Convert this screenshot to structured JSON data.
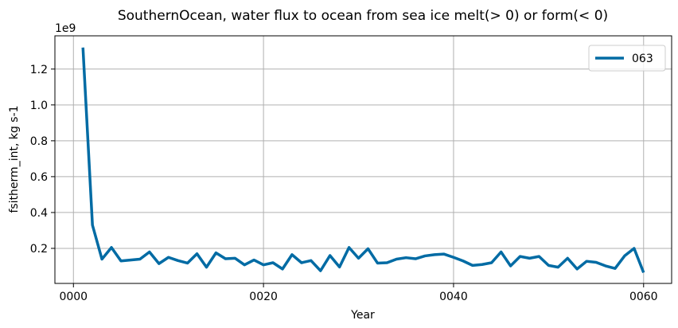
{
  "chart_data": {
    "type": "line",
    "title": "SouthernOcean, water flux to ocean from sea ice melt(> 0) or form(< 0)",
    "xlabel": "Year",
    "ylabel": "fsitherm_int, kg s-1",
    "y_offset_label": "1e9",
    "xlim": [
      -1.95,
      62.95
    ],
    "ylim": [
      0.0045,
      1.3855
    ],
    "x_ticks": [
      0,
      20,
      40,
      60
    ],
    "x_tick_labels": [
      "0000",
      "0020",
      "0040",
      "0060"
    ],
    "y_ticks": [
      0.2,
      0.4,
      0.6,
      0.8,
      1.0,
      1.2
    ],
    "y_tick_labels": [
      "0.2",
      "0.4",
      "0.6",
      "0.8",
      "1.0",
      "1.2"
    ],
    "grid": true,
    "legend_position": "upper-right",
    "series": [
      {
        "name": "063",
        "color": "#006ba4",
        "x": [
          1,
          2,
          3,
          4,
          5,
          6,
          7,
          8,
          9,
          10,
          11,
          12,
          13,
          14,
          15,
          16,
          17,
          18,
          19,
          20,
          21,
          22,
          23,
          24,
          25,
          26,
          27,
          28,
          29,
          30,
          31,
          32,
          33,
          34,
          35,
          36,
          37,
          38,
          39,
          40,
          41,
          42,
          43,
          44,
          45,
          46,
          47,
          48,
          49,
          50,
          51,
          52,
          53,
          54,
          55,
          56,
          57,
          58,
          59,
          60
        ],
        "values": [
          1.32,
          0.33,
          0.14,
          0.205,
          0.13,
          0.135,
          0.14,
          0.18,
          0.115,
          0.15,
          0.132,
          0.118,
          0.17,
          0.095,
          0.175,
          0.142,
          0.145,
          0.108,
          0.135,
          0.108,
          0.12,
          0.085,
          0.165,
          0.12,
          0.132,
          0.075,
          0.16,
          0.096,
          0.205,
          0.145,
          0.198,
          0.118,
          0.12,
          0.14,
          0.148,
          0.142,
          0.158,
          0.165,
          0.168,
          0.15,
          0.13,
          0.105,
          0.11,
          0.12,
          0.18,
          0.102,
          0.155,
          0.145,
          0.155,
          0.105,
          0.095,
          0.145,
          0.085,
          0.128,
          0.122,
          0.102,
          0.088,
          0.158,
          0.2,
          0.065
        ]
      }
    ]
  }
}
